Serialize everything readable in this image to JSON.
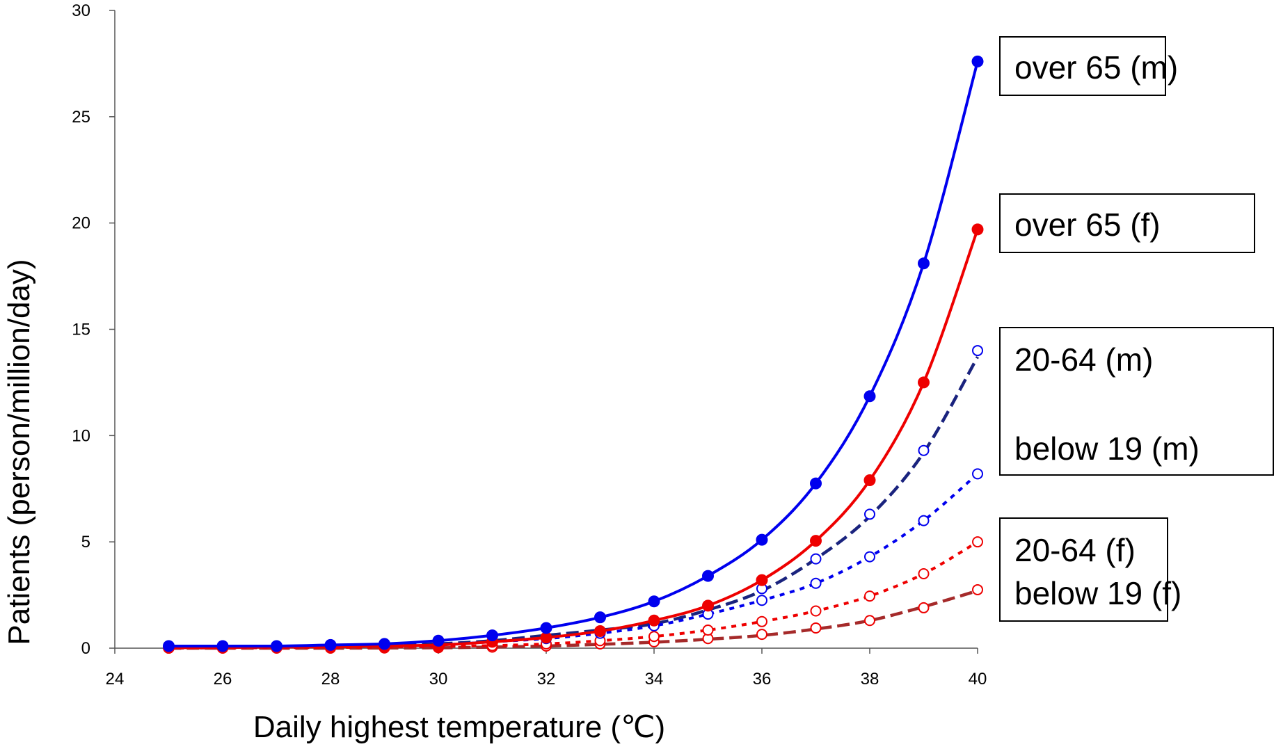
{
  "chart_data": {
    "type": "line",
    "xlabel": "Daily highest temperature (℃)",
    "ylabel": "Patients (person/million/day)",
    "xlim": [
      24,
      40
    ],
    "ylim": [
      0,
      30
    ],
    "xticks": [
      "24",
      "26",
      "28",
      "30",
      "32",
      "34",
      "36",
      "38",
      "40"
    ],
    "yticks": [
      "0",
      "5",
      "10",
      "15",
      "20",
      "25",
      "30"
    ],
    "x": [
      25,
      26,
      27,
      28,
      29,
      30,
      31,
      32,
      33,
      34,
      35,
      36,
      37,
      38,
      39,
      40
    ],
    "series": [
      {
        "name": "over 65 (m)",
        "color": "#0000ee",
        "style": "solid",
        "marker": "filled",
        "values": [
          0.1,
          0.1,
          0.1,
          0.15,
          0.2,
          0.35,
          0.6,
          0.95,
          1.45,
          2.2,
          3.4,
          5.1,
          7.75,
          11.85,
          18.1,
          27.6
        ]
      },
      {
        "name": "over 65 (f)",
        "color": "#ee0000",
        "style": "solid",
        "marker": "filled",
        "values": [
          0.02,
          0.03,
          0.05,
          0.06,
          0.1,
          0.15,
          0.3,
          0.5,
          0.8,
          1.3,
          2.0,
          3.2,
          5.05,
          7.9,
          12.5,
          19.7
        ]
      },
      {
        "name": "20-64 (m)",
        "color": "#0000ee",
        "style": "dotted",
        "marker": "open",
        "values": [
          0.02,
          0.03,
          0.05,
          0.07,
          0.1,
          0.15,
          0.3,
          0.45,
          0.7,
          1.05,
          1.6,
          2.25,
          3.05,
          4.3,
          6.0,
          8.2
        ]
      },
      {
        "name": "below 19 (m)",
        "color": "#0000ee",
        "style": "open-only",
        "marker": "open",
        "values": [
          null,
          null,
          null,
          null,
          null,
          null,
          null,
          null,
          null,
          null,
          null,
          2.8,
          4.2,
          6.3,
          9.3,
          14.0
        ]
      },
      {
        "name": "below 19 (m) fit",
        "color": "#1a237e",
        "style": "dashed",
        "marker": "none",
        "values": [
          0.0,
          0.02,
          0.05,
          0.08,
          0.12,
          0.2,
          0.35,
          0.6,
          0.85,
          1.15,
          1.8,
          2.7,
          4.2,
          6.2,
          9.2,
          13.7
        ]
      },
      {
        "name": "20-64 (f)",
        "color": "#ee0000",
        "style": "dotted",
        "marker": "open",
        "values": [
          0.0,
          0.01,
          0.02,
          0.03,
          0.05,
          0.08,
          0.12,
          0.2,
          0.35,
          0.55,
          0.85,
          1.25,
          1.75,
          2.45,
          3.5,
          5.0
        ]
      },
      {
        "name": "below 19 (f)",
        "color": "#ee0000",
        "style": "open-only",
        "marker": "open",
        "values": [
          0.0,
          0.0,
          0.0,
          0.0,
          0.01,
          0.02,
          0.05,
          0.1,
          0.2,
          0.3,
          0.45,
          0.65,
          0.95,
          1.3,
          1.9,
          2.75
        ]
      },
      {
        "name": "below 19 (f) fit",
        "color": "#a52a2a",
        "style": "dashed",
        "marker": "none",
        "values": [
          0.0,
          0.0,
          0.0,
          0.0,
          0.01,
          0.02,
          0.05,
          0.1,
          0.18,
          0.28,
          0.42,
          0.6,
          0.9,
          1.3,
          1.95,
          2.7
        ]
      }
    ],
    "legend": [
      {
        "text": "over 65 (m)"
      },
      {
        "text": "over 65 (f)"
      },
      {
        "text": "20-64 (m)"
      },
      {
        "text": "below 19 (m)"
      },
      {
        "text": "20-64 (f)"
      },
      {
        "text": "below 19 (f)"
      }
    ]
  }
}
